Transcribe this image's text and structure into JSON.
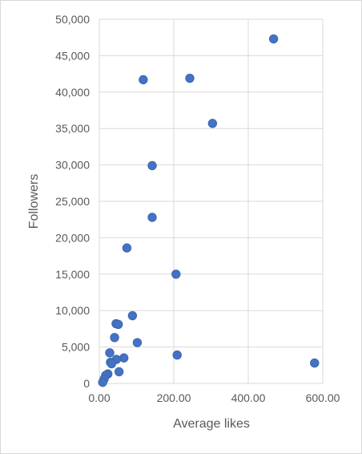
{
  "chart_data": {
    "type": "scatter",
    "title": "",
    "xlabel": "Average likes",
    "ylabel": "Followers",
    "xlim": [
      0,
      600
    ],
    "ylim": [
      0,
      50000
    ],
    "xticks": [
      0,
      200,
      400,
      600
    ],
    "xtick_labels": [
      "0.00",
      "200.00",
      "400.00",
      "600.00"
    ],
    "yticks": [
      0,
      5000,
      10000,
      15000,
      20000,
      25000,
      30000,
      35000,
      40000,
      45000,
      50000
    ],
    "ytick_labels": [
      "0",
      "5,000",
      "10,000",
      "15,000",
      "20,000",
      "25,000",
      "30,000",
      "35,000",
      "40,000",
      "45,000",
      "50,000"
    ],
    "grid": {
      "horizontal": true,
      "vertical": true
    },
    "legend": "none",
    "marker_color": "#4472c4",
    "series": [
      {
        "points": [
          [
            468,
            47300
          ],
          [
            243,
            41900
          ],
          [
            118,
            41700
          ],
          [
            304,
            35700
          ],
          [
            142,
            29900
          ],
          [
            142,
            22800
          ],
          [
            74,
            18600
          ],
          [
            206,
            15000
          ],
          [
            89,
            9300
          ],
          [
            45,
            8200
          ],
          [
            51,
            8100
          ],
          [
            41,
            6300
          ],
          [
            102,
            5600
          ],
          [
            28,
            4200
          ],
          [
            209,
            3900
          ],
          [
            66,
            3500
          ],
          [
            46,
            3300
          ],
          [
            30,
            2900
          ],
          [
            33,
            2700
          ],
          [
            578,
            2800
          ],
          [
            53,
            1600
          ],
          [
            23,
            1300
          ],
          [
            17,
            1100
          ],
          [
            13,
            600
          ],
          [
            9,
            150
          ]
        ]
      }
    ]
  }
}
